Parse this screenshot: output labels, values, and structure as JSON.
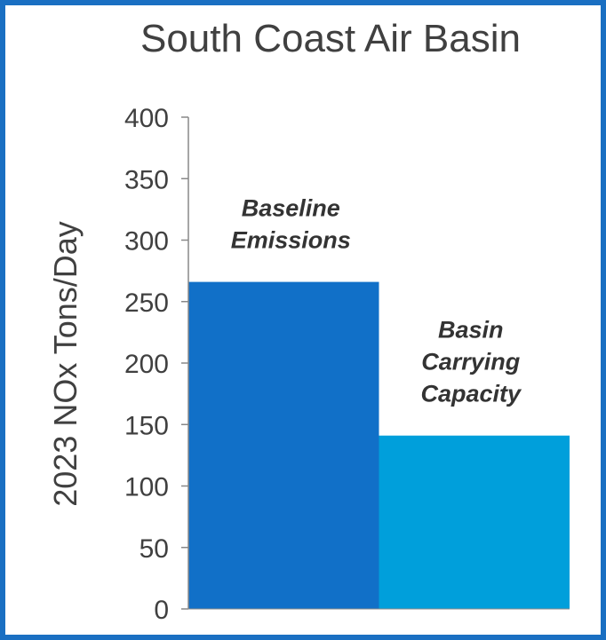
{
  "chart_data": {
    "type": "bar",
    "title": "South Coast Air Basin",
    "ylabel": "2023 NOx Tons/Day",
    "xlabel": "",
    "ylim": [
      0,
      400
    ],
    "yticks": [
      0,
      50,
      100,
      150,
      200,
      250,
      300,
      350,
      400
    ],
    "grid": false,
    "legend": "none",
    "bars": [
      {
        "label_lines": [
          "Baseline",
          "Emissions"
        ],
        "value": 266,
        "color": "#1170c8"
      },
      {
        "label_lines": [
          "Basin",
          "Carrying",
          "Capacity"
        ],
        "value": 141,
        "color": "#009fdb"
      }
    ],
    "colors": {
      "frame": "#1a6fc2",
      "axis": "#888888",
      "text": "#404040"
    }
  }
}
